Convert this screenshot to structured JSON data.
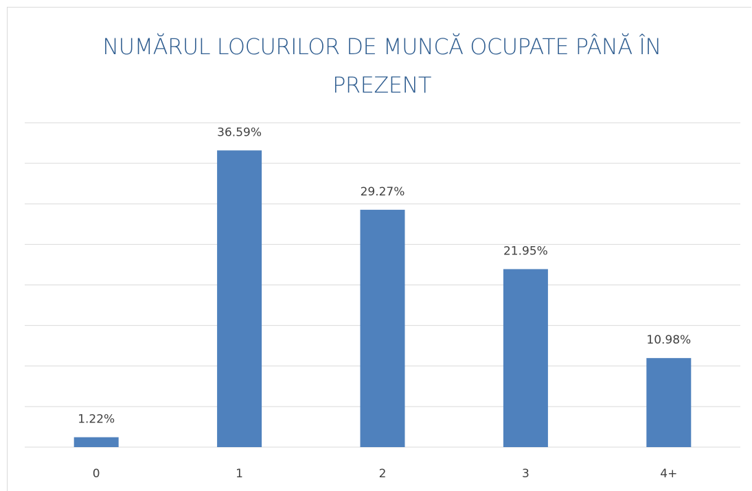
{
  "chart_data": {
    "type": "bar",
    "title": "NUMĂRUL LOCURILOR DE MUNCĂ OCUPATE PÂNĂ ÎN PREZENT",
    "categories": [
      "0",
      "1",
      "2",
      "3",
      "4+"
    ],
    "values": [
      1.22,
      36.59,
      29.27,
      21.95,
      10.98
    ],
    "value_labels": [
      "1.22%",
      "36.59%",
      "29.27%",
      "21.95%",
      "10.98%"
    ],
    "color": "#4f81bd",
    "ylim": [
      0,
      40
    ],
    "yticks": [
      0,
      5,
      10,
      15,
      20,
      25,
      30,
      35,
      40
    ],
    "grid": true
  }
}
